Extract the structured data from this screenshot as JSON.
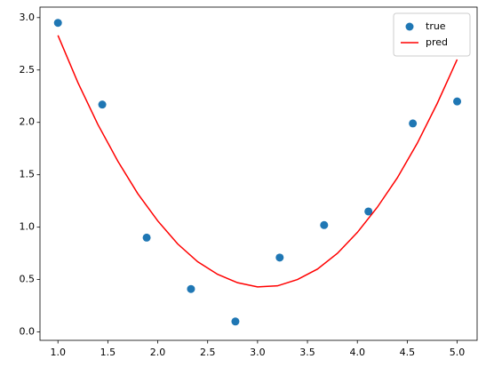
{
  "chart_data": {
    "type": "scatter",
    "series": [
      {
        "name": "true",
        "type": "scatter",
        "color": "#1f77b4",
        "x": [
          1.0,
          1.444,
          1.889,
          2.333,
          2.778,
          3.222,
          3.667,
          4.111,
          4.556,
          5.0
        ],
        "values": [
          2.95,
          2.17,
          0.9,
          0.41,
          0.1,
          0.71,
          1.02,
          1.15,
          1.99,
          2.2
        ]
      },
      {
        "name": "pred",
        "type": "line",
        "color": "#ff0000",
        "x": [
          1.0,
          1.2,
          1.4,
          1.6,
          1.8,
          2.0,
          2.2,
          2.4,
          2.6,
          2.8,
          3.0,
          3.2,
          3.4,
          3.6,
          3.8,
          4.0,
          4.2,
          4.4,
          4.6,
          4.8,
          5.0
        ],
        "values": [
          2.83,
          2.38,
          1.98,
          1.63,
          1.32,
          1.06,
          0.84,
          0.67,
          0.55,
          0.47,
          0.43,
          0.44,
          0.5,
          0.6,
          0.75,
          0.95,
          1.19,
          1.47,
          1.8,
          2.18,
          2.6
        ]
      }
    ],
    "xlim": [
      0.82,
      5.2
    ],
    "ylim": [
      -0.08,
      3.1
    ],
    "xticks": [
      {
        "value": 1.0,
        "label": "1.0"
      },
      {
        "value": 1.5,
        "label": "1.5"
      },
      {
        "value": 2.0,
        "label": "2.0"
      },
      {
        "value": 2.5,
        "label": "2.5"
      },
      {
        "value": 3.0,
        "label": "3.0"
      },
      {
        "value": 3.5,
        "label": "3.5"
      },
      {
        "value": 4.0,
        "label": "4.0"
      },
      {
        "value": 4.5,
        "label": "4.5"
      },
      {
        "value": 5.0,
        "label": "5.0"
      }
    ],
    "yticks": [
      {
        "value": 0.0,
        "label": "0.0"
      },
      {
        "value": 0.5,
        "label": "0.5"
      },
      {
        "value": 1.0,
        "label": "1.0"
      },
      {
        "value": 1.5,
        "label": "1.5"
      },
      {
        "value": 2.0,
        "label": "2.0"
      },
      {
        "value": 2.5,
        "label": "2.5"
      },
      {
        "value": 3.0,
        "label": "3.0"
      }
    ],
    "grid": false,
    "legend": "upper-right"
  }
}
